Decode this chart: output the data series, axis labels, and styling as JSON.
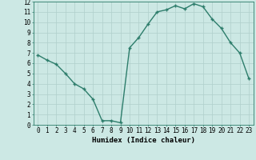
{
  "x": [
    0,
    1,
    2,
    3,
    4,
    5,
    6,
    7,
    8,
    9,
    10,
    11,
    12,
    13,
    14,
    15,
    16,
    17,
    18,
    19,
    20,
    21,
    22,
    23
  ],
  "y": [
    6.8,
    6.3,
    5.9,
    5.0,
    4.0,
    3.5,
    2.5,
    0.4,
    0.4,
    0.2,
    7.5,
    8.5,
    9.8,
    11.0,
    11.2,
    11.6,
    11.3,
    11.8,
    11.5,
    10.3,
    9.4,
    8.0,
    7.0,
    4.5
  ],
  "line_color": "#2d7d6b",
  "marker": "+",
  "marker_size": 3,
  "marker_linewidth": 1.0,
  "bg_color": "#cce8e4",
  "grid_color": "#b0cfcb",
  "xlabel": "Humidex (Indice chaleur)",
  "xlabel_fontsize": 6.5,
  "tick_fontsize": 5.5,
  "ylim": [
    0,
    12
  ],
  "xlim": [
    -0.5,
    23.5
  ],
  "yticks": [
    0,
    1,
    2,
    3,
    4,
    5,
    6,
    7,
    8,
    9,
    10,
    11,
    12
  ],
  "xticks": [
    0,
    1,
    2,
    3,
    4,
    5,
    6,
    7,
    8,
    9,
    10,
    11,
    12,
    13,
    14,
    15,
    16,
    17,
    18,
    19,
    20,
    21,
    22,
    23
  ],
  "linewidth": 1.0
}
